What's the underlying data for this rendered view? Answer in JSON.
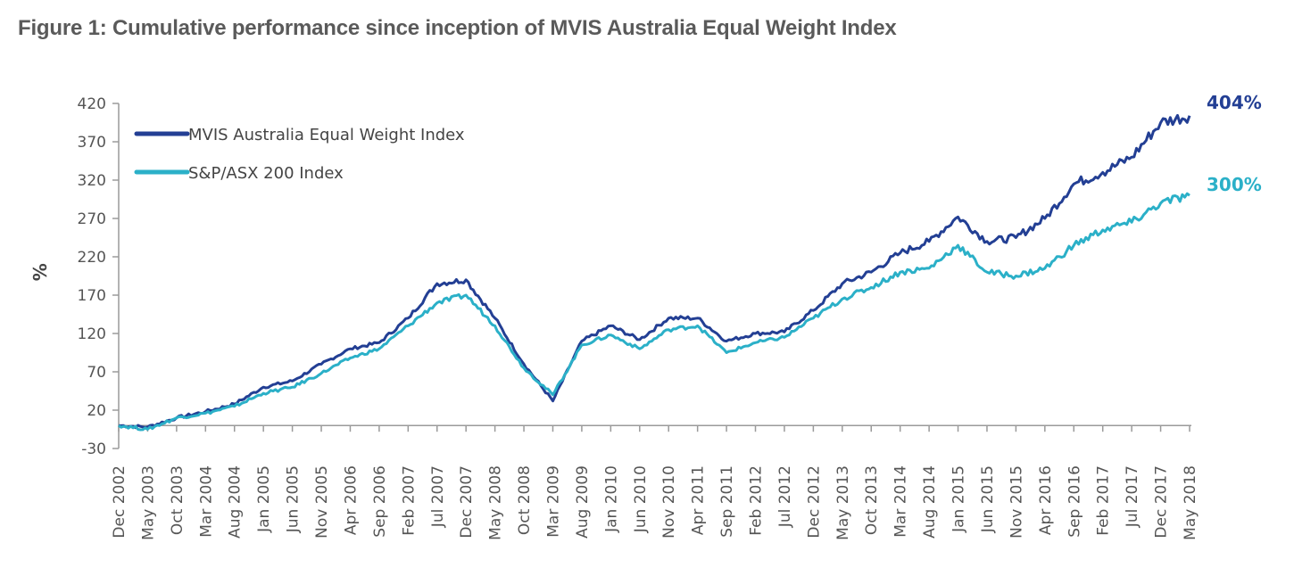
{
  "title": "Figure 1: Cumulative performance since inception of MVIS Australia Equal Weight Index",
  "chart_data": {
    "type": "line",
    "title": "Figure 1: Cumulative performance since inception of MVIS Australia Equal Weight Index",
    "xlabel": "",
    "ylabel": "%",
    "ylim": [
      -30,
      420
    ],
    "yticks": [
      420,
      370,
      320,
      270,
      220,
      170,
      120,
      70,
      20,
      -30
    ],
    "grid": false,
    "legend_position": "top-left",
    "categories": [
      "Dec 2002",
      "May 2003",
      "Oct 2003",
      "Mar 2004",
      "Aug 2004",
      "Jan 2005",
      "Jun 2005",
      "Nov 2005",
      "Apr 2006",
      "Sep 2006",
      "Feb 2007",
      "Jul 2007",
      "Dec 2007",
      "May 2008",
      "Oct 2008",
      "Mar 2009",
      "Aug 2009",
      "Jan 2010",
      "Jun 2010",
      "Nov 2010",
      "Apr 2011",
      "Sep 2011",
      "Feb 2012",
      "Jul 2012",
      "Dec 2012",
      "May 2013",
      "Oct 2013",
      "Mar 2014",
      "Aug 2014",
      "Jan 2015",
      "Jun 2015",
      "Nov 2015",
      "Apr 2016",
      "Sep 2016",
      "Feb 2017",
      "Jul 2017",
      "Dec 2017",
      "May 2018"
    ],
    "series": [
      {
        "name": "MVIS Australia Equal Weight Index",
        "color": "#233f94",
        "end_label": "404%",
        "values": [
          0,
          -2,
          10,
          18,
          28,
          50,
          58,
          80,
          100,
          108,
          140,
          185,
          190,
          140,
          80,
          32,
          110,
          130,
          112,
          140,
          140,
          110,
          120,
          122,
          150,
          185,
          200,
          225,
          240,
          272,
          240,
          245,
          270,
          315,
          330,
          350,
          395,
          404
        ]
      },
      {
        "name": "S&P/ASX 200 Index",
        "color": "#2bb0c8",
        "end_label": "300%",
        "values": [
          0,
          -5,
          10,
          16,
          25,
          42,
          50,
          68,
          88,
          100,
          130,
          160,
          170,
          130,
          75,
          40,
          105,
          118,
          100,
          125,
          130,
          95,
          108,
          115,
          140,
          165,
          180,
          200,
          205,
          235,
          200,
          195,
          205,
          235,
          255,
          265,
          290,
          300
        ]
      }
    ]
  }
}
